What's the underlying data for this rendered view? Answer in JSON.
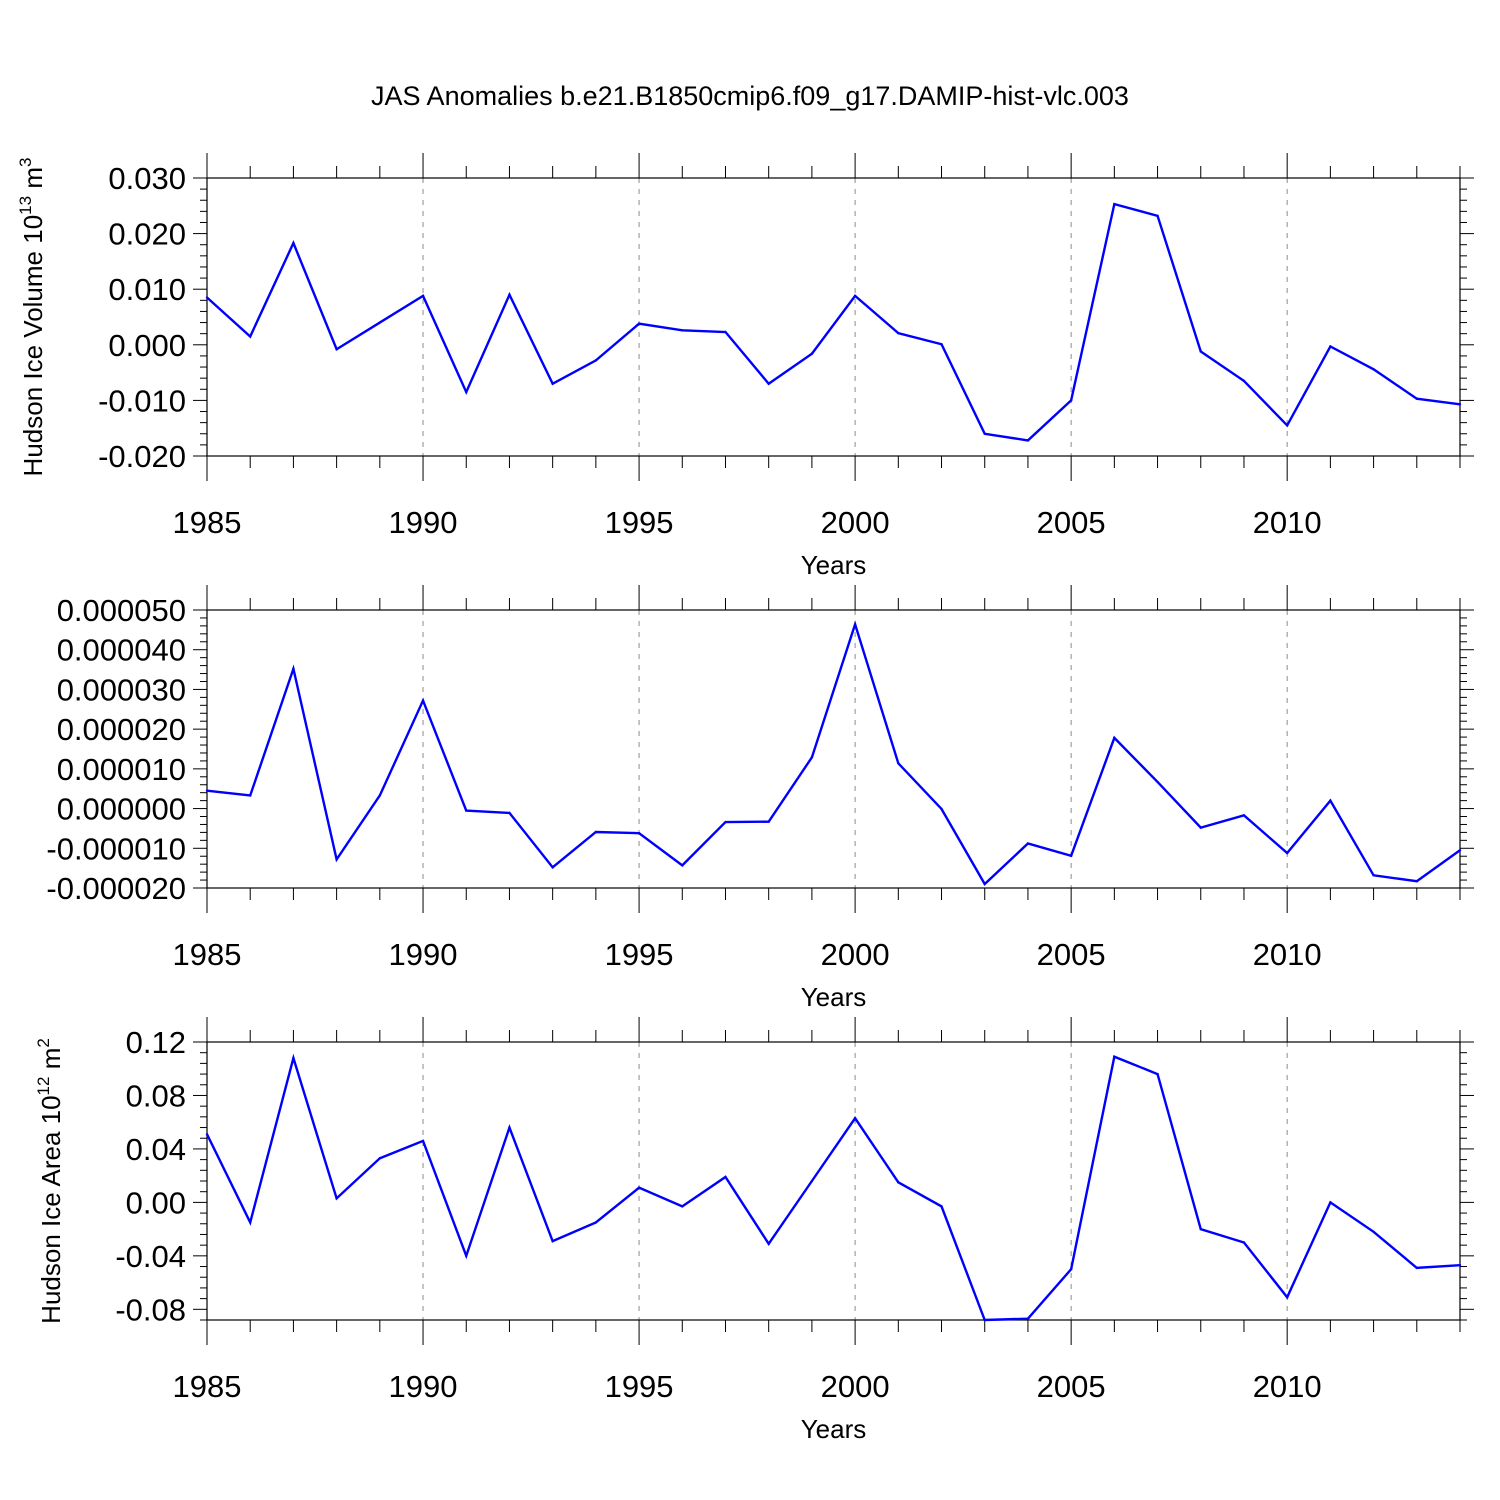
{
  "title": "JAS Anomalies b.e21.B1850cmip6.f09_g17.DAMIP-hist-vlc.003",
  "colors": {
    "line": "#0000ff",
    "axes": "#000000",
    "grid": "#8c8c8c"
  },
  "chart_data": [
    {
      "type": "line",
      "ylabel_base": "Hudson Ice Volume 10",
      "ylabel_exp": "13",
      "ylabel_unit": " m",
      "ylabel_unit_exp": "3",
      "xlabel": "Years",
      "xlim": [
        1985,
        2014
      ],
      "ylim": [
        -0.02,
        0.03
      ],
      "x_ticks": [
        1985,
        1990,
        1995,
        2000,
        2005,
        2010
      ],
      "x_tick_labels": [
        "1985",
        "1990",
        "1995",
        "2000",
        "2005",
        "2010"
      ],
      "y_ticks": [
        -0.02,
        -0.01,
        0.0,
        0.01,
        0.02,
        0.03
      ],
      "y_tick_labels": [
        "-0.020",
        "-0.010",
        "0.000",
        "0.010",
        "0.020",
        "0.030"
      ],
      "x": [
        1985,
        1986,
        1987,
        1988,
        1989,
        1990,
        1991,
        1992,
        1993,
        1994,
        1995,
        1996,
        1997,
        1998,
        1999,
        2000,
        2001,
        2002,
        2003,
        2004,
        2005,
        2006,
        2007,
        2008,
        2009,
        2010,
        2011,
        2012,
        2013,
        2014
      ],
      "values": [
        0.0085,
        0.0015,
        0.0183,
        -0.0008,
        0.004,
        0.0088,
        -0.0085,
        0.009,
        -0.007,
        -0.0028,
        0.0038,
        0.0026,
        0.0023,
        -0.007,
        -0.0016,
        0.0088,
        0.0021,
        0.0001,
        -0.016,
        -0.0172,
        -0.01,
        0.0253,
        0.0232,
        -0.0012,
        -0.0065,
        -0.0145,
        -0.0003,
        -0.0044,
        -0.0097,
        -0.0107
      ]
    },
    {
      "type": "line",
      "ylabel_base": "",
      "ylabel_exp": "",
      "ylabel_unit": "",
      "ylabel_unit_exp": "",
      "xlabel": "Years",
      "xlim": [
        1985,
        2014
      ],
      "ylim": [
        -2e-05,
        5e-05
      ],
      "x_ticks": [
        1985,
        1990,
        1995,
        2000,
        2005,
        2010
      ],
      "x_tick_labels": [
        "1985",
        "1990",
        "1995",
        "2000",
        "2005",
        "2010"
      ],
      "y_ticks": [
        -2e-05,
        -1e-05,
        0.0,
        1e-05,
        2e-05,
        3e-05,
        4e-05,
        5e-05
      ],
      "y_tick_labels": [
        "-0.000020",
        "-0.000010",
        "0.000000",
        "0.000010",
        "0.000020",
        "0.000030",
        "0.000040",
        "0.000050"
      ],
      "x": [
        1985,
        1986,
        1987,
        1988,
        1989,
        1990,
        1991,
        1992,
        1993,
        1994,
        1995,
        1996,
        1997,
        1998,
        1999,
        2000,
        2001,
        2002,
        2003,
        2004,
        2005,
        2006,
        2007,
        2008,
        2009,
        2010,
        2011,
        2012,
        2013,
        2014
      ],
      "values": [
        4.5e-06,
        3.3e-06,
        3.52e-05,
        -1.28e-05,
        3.3e-06,
        2.72e-05,
        -5e-07,
        -1.1e-06,
        -1.48e-05,
        -5.9e-06,
        -6.2e-06,
        -1.43e-05,
        -3.4e-06,
        -3.3e-06,
        1.29e-05,
        4.64e-05,
        1.14e-05,
        -1e-07,
        -1.9e-05,
        -8.8e-06,
        -1.19e-05,
        1.78e-05,
        6.7e-06,
        -4.8e-06,
        -1.7e-06,
        -1.12e-05,
        2e-06,
        -1.68e-05,
        -1.83e-05,
        -1.05e-05
      ]
    },
    {
      "type": "line",
      "ylabel_base": "Hudson Ice Area 10",
      "ylabel_exp": "12",
      "ylabel_unit": " m",
      "ylabel_unit_exp": "2",
      "xlabel": "Years",
      "xlim": [
        1985,
        2014
      ],
      "ylim": [
        -0.088,
        0.12
      ],
      "x_ticks": [
        1985,
        1990,
        1995,
        2000,
        2005,
        2010
      ],
      "x_tick_labels": [
        "1985",
        "1990",
        "1995",
        "2000",
        "2005",
        "2010"
      ],
      "y_ticks": [
        -0.08,
        -0.04,
        0.0,
        0.04,
        0.08,
        0.12
      ],
      "y_tick_labels": [
        "-0.08",
        "-0.04",
        "0.00",
        "0.04",
        "0.08",
        "0.12"
      ],
      "x": [
        1985,
        1986,
        1987,
        1988,
        1989,
        1990,
        1991,
        1992,
        1993,
        1994,
        1995,
        1996,
        1997,
        1998,
        1999,
        2000,
        2001,
        2002,
        2003,
        2004,
        2005,
        2006,
        2007,
        2008,
        2009,
        2010,
        2011,
        2012,
        2013,
        2014
      ],
      "values": [
        0.051,
        -0.015,
        0.108,
        0.003,
        0.033,
        0.046,
        -0.04,
        0.056,
        -0.029,
        -0.015,
        0.011,
        -0.003,
        0.019,
        -0.031,
        0.016,
        0.063,
        0.015,
        -0.003,
        -0.088,
        -0.087,
        -0.05,
        0.109,
        0.096,
        -0.02,
        -0.03,
        -0.071,
        0.0,
        -0.022,
        -0.049,
        -0.047
      ]
    }
  ]
}
